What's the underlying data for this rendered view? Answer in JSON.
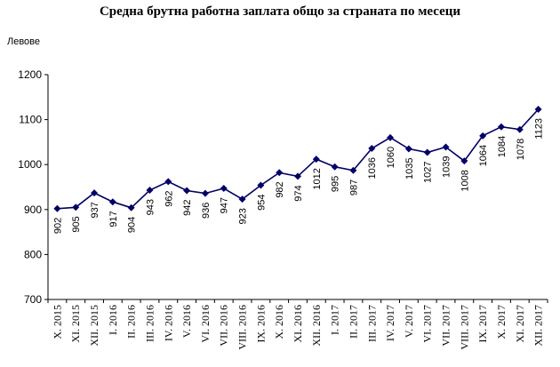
{
  "chart_data": {
    "type": "line",
    "title": "Средна брутна работна заплата общо за страната по месеци",
    "ylabel": "Левове",
    "xlabel": "",
    "ylim": [
      700,
      1200
    ],
    "yticks": [
      700,
      800,
      900,
      1000,
      1100,
      1200
    ],
    "grid": false,
    "legend": "none",
    "line_color": "#000066",
    "marker": "diamond",
    "categories": [
      "X. 2015",
      "XI. 2015",
      "XII. 2015",
      "I. 2016",
      "II. 2016",
      "III. 2016",
      "IV. 2016",
      "V. 2016",
      "VI. 2016",
      "VII. 2016",
      "VIII. 2016",
      "IX. 2016",
      "X. 2016",
      "XI. 2016",
      "XII. 2016",
      "I. 2017",
      "II. 2017",
      "III. 2017",
      "IV. 2017",
      "V. 2017",
      "VI. 2017",
      "VII. 2017",
      "VIII. 2017",
      "IX. 2017",
      "X. 2017",
      "XI. 2017",
      "XII. 2017"
    ],
    "series": [
      {
        "values": [
          902,
          905,
          937,
          917,
          904,
          943,
          962,
          942,
          936,
          947,
          923,
          954,
          982,
          974,
          1012,
          995,
          987,
          1036,
          1060,
          1035,
          1027,
          1039,
          1008,
          1064,
          1084,
          1078,
          1123
        ]
      }
    ]
  }
}
